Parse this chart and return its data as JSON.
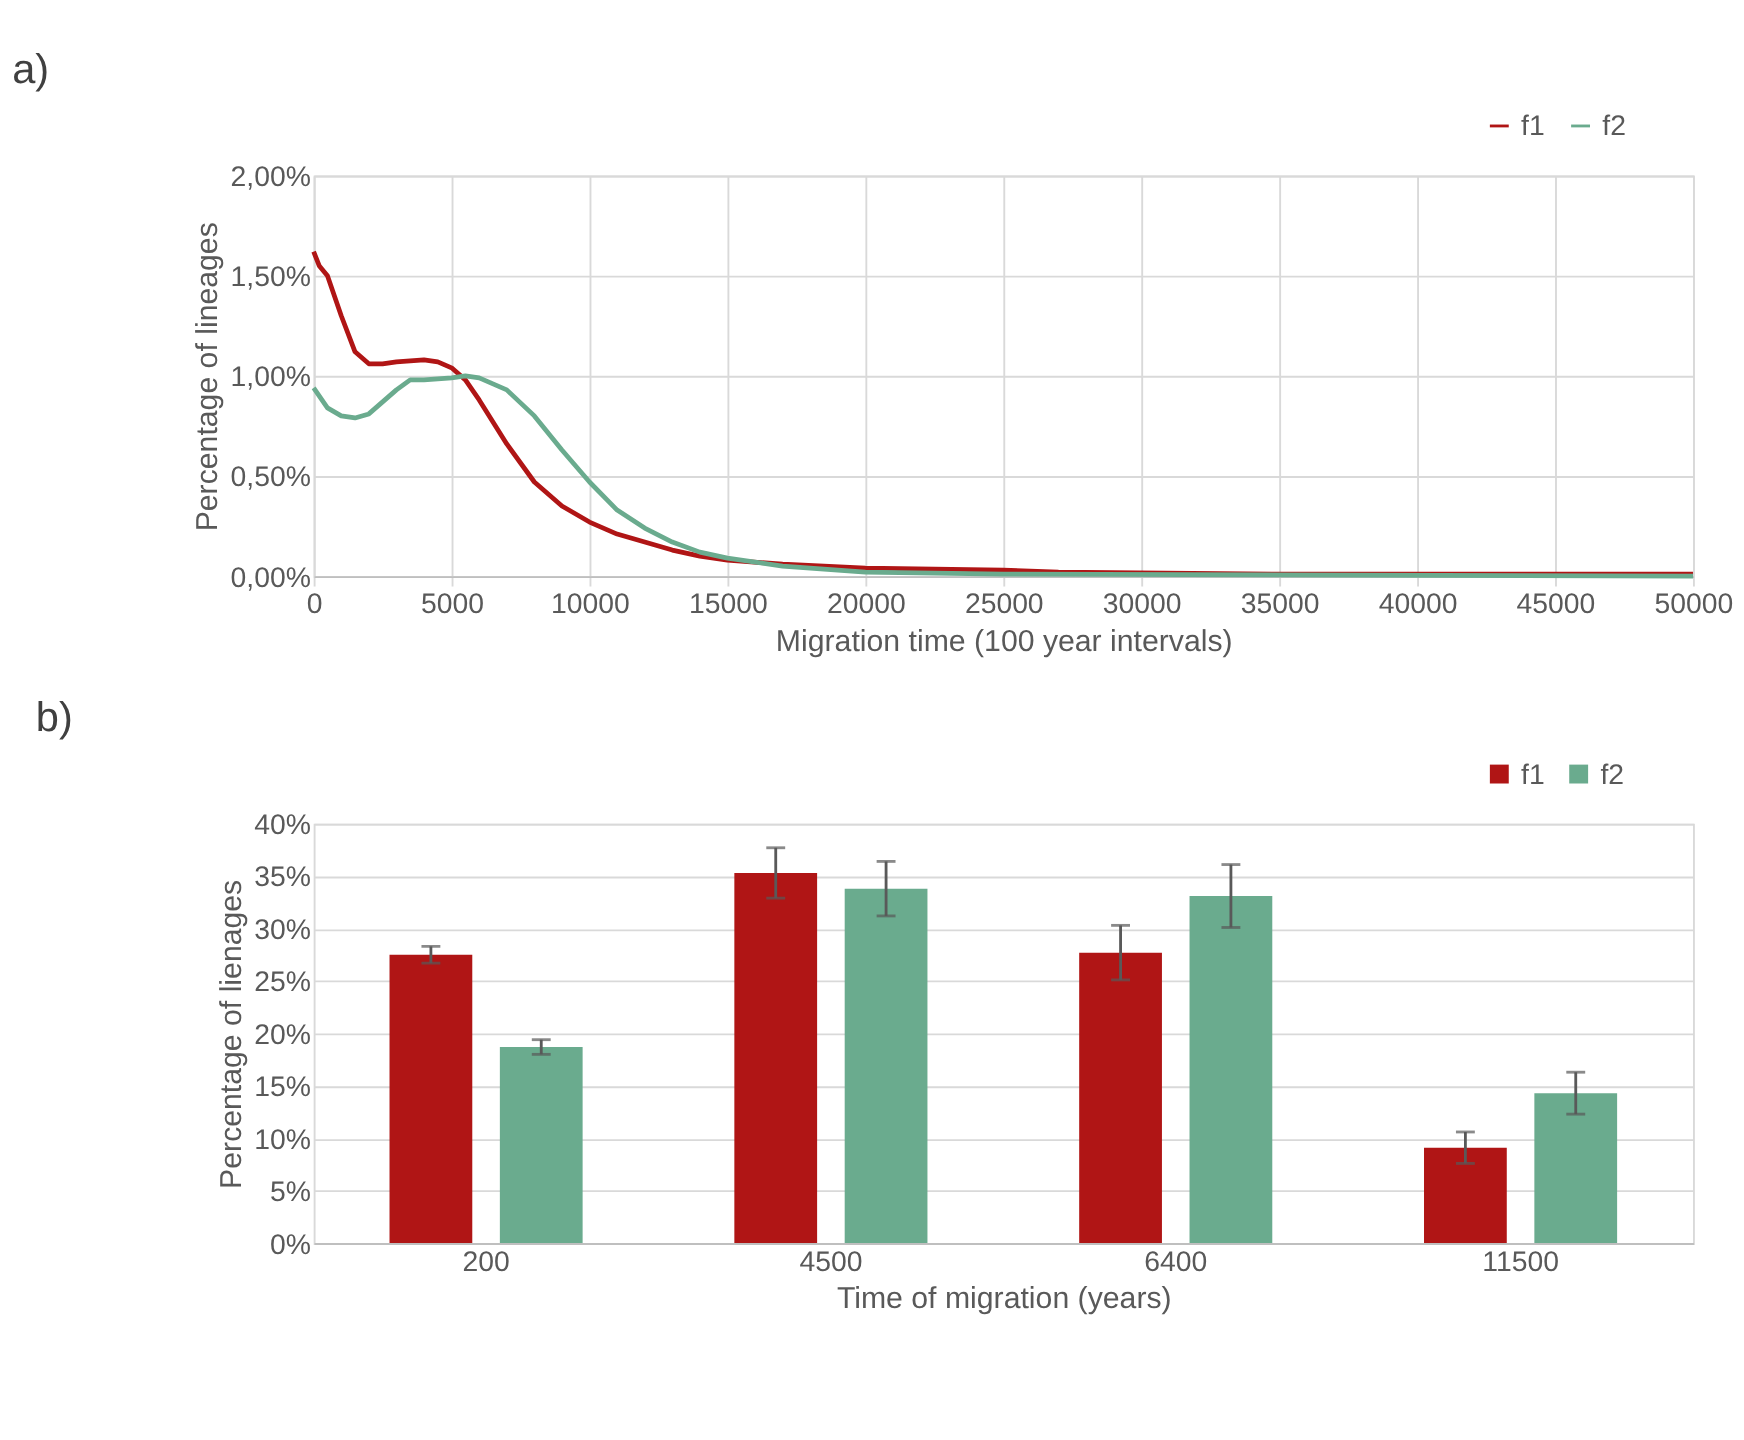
{
  "chart_data": [
    {
      "type": "line",
      "title": "a)",
      "xlabel": "Migration time (100 year intervals)",
      "ylabel": "Percentage of lineages",
      "xlim": [
        0,
        50000
      ],
      "xticks": [
        0,
        5000,
        10000,
        15000,
        20000,
        25000,
        30000,
        35000,
        40000,
        45000,
        50000
      ],
      "ylim": [
        0,
        2
      ],
      "yticks": [
        {
          "value": 0,
          "label": "0,00%"
        },
        {
          "value": 0.5,
          "label": "0,50%"
        },
        {
          "value": 1,
          "label": "1,00%"
        },
        {
          "value": 1.5,
          "label": "1,50%"
        },
        {
          "value": 2,
          "label": "2,00%"
        }
      ],
      "grid": true,
      "legend": "top right",
      "line_style": "solid",
      "marker": "none",
      "series": [
        {
          "name": "f1",
          "color": "#b01515",
          "x": [
            0,
            200,
            500,
            1000,
            1500,
            2000,
            2500,
            3000,
            4000,
            4500,
            5000,
            5500,
            6000,
            7000,
            8000,
            9000,
            10000,
            11000,
            12000,
            13000,
            14000,
            15000,
            17000,
            20000,
            25000,
            27000,
            35000,
            40000,
            50000
          ],
          "values": [
            1.62,
            1.55,
            1.5,
            1.3,
            1.12,
            1.06,
            1.06,
            1.07,
            1.08,
            1.07,
            1.04,
            0.98,
            0.88,
            0.66,
            0.47,
            0.35,
            0.27,
            0.21,
            0.17,
            0.13,
            0.1,
            0.08,
            0.06,
            0.04,
            0.03,
            0.02,
            0.01,
            0.01,
            0.01
          ]
        },
        {
          "name": "f2",
          "color": "#6aab8e",
          "x": [
            0,
            500,
            1000,
            1500,
            2000,
            2500,
            3000,
            3500,
            4000,
            5000,
            5500,
            6000,
            7000,
            8000,
            9000,
            10000,
            11000,
            12000,
            13000,
            14000,
            15000,
            17000,
            20000,
            25000,
            50000
          ],
          "values": [
            0.94,
            0.84,
            0.8,
            0.79,
            0.81,
            0.87,
            0.93,
            0.98,
            0.98,
            0.99,
            1.0,
            0.99,
            0.93,
            0.8,
            0.63,
            0.47,
            0.33,
            0.24,
            0.17,
            0.12,
            0.09,
            0.05,
            0.02,
            0.01,
            0.0
          ]
        }
      ]
    },
    {
      "type": "bar",
      "title": "b)",
      "xlabel": "Time of migration (years)",
      "ylabel": "Percentage of lienages",
      "categories": [
        "200",
        "4500",
        "6400",
        "11500"
      ],
      "ylim": [
        0,
        40
      ],
      "yticks": [
        {
          "value": 0,
          "label": "0%"
        },
        {
          "value": 5,
          "label": "5%"
        },
        {
          "value": 10,
          "label": "10%"
        },
        {
          "value": 15,
          "label": "15%"
        },
        {
          "value": 20,
          "label": "20%"
        },
        {
          "value": 25,
          "label": "25%"
        },
        {
          "value": 30,
          "label": "30%"
        },
        {
          "value": 35,
          "label": "35%"
        },
        {
          "value": 40,
          "label": "40%"
        }
      ],
      "grid": "y",
      "legend": "top right",
      "series": [
        {
          "name": "f1",
          "color": "#b01515",
          "values": [
            27.5,
            35.3,
            27.7,
            9.1
          ],
          "errors": [
            0.8,
            2.4,
            2.6,
            1.5
          ]
        },
        {
          "name": "f2",
          "color": "#6aab8e",
          "values": [
            18.7,
            33.8,
            33.1,
            14.3
          ],
          "errors": [
            0.7,
            2.6,
            3.0,
            2.0
          ]
        }
      ]
    }
  ]
}
